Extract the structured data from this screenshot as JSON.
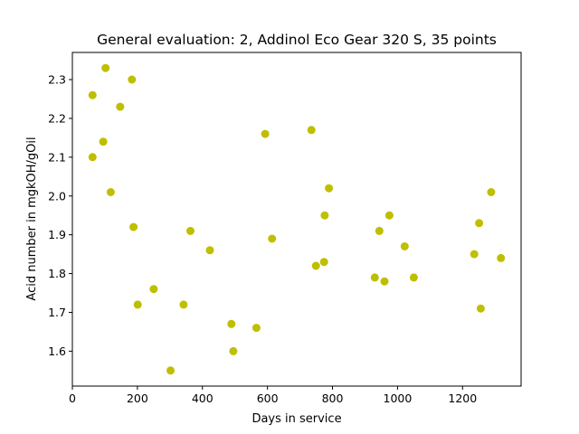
{
  "chart_data": {
    "type": "scatter",
    "title": "General evaluation: 2, Addinol Eco Gear 320 S, 35 points",
    "xlabel": "Days in service",
    "ylabel": "Acid number in mgkOH/gOil",
    "xlim": [
      0,
      1380
    ],
    "ylim": [
      1.51,
      2.37
    ],
    "xticks": [
      0,
      200,
      400,
      600,
      800,
      1000,
      1200
    ],
    "yticks": [
      1.6,
      1.7,
      1.8,
      1.9,
      2.0,
      2.1,
      2.2,
      2.3
    ],
    "ytick_labels": [
      "1.6",
      "1.7",
      "1.8",
      "1.9",
      "2.0",
      "2.1",
      "2.2",
      "2.3"
    ],
    "grid": false,
    "marker_color": "#bfbf00",
    "points": [
      {
        "x": 62,
        "y": 2.26
      },
      {
        "x": 62,
        "y": 2.1
      },
      {
        "x": 95,
        "y": 2.14
      },
      {
        "x": 102,
        "y": 2.33
      },
      {
        "x": 118,
        "y": 2.01
      },
      {
        "x": 147,
        "y": 2.23
      },
      {
        "x": 183,
        "y": 2.3
      },
      {
        "x": 188,
        "y": 1.92
      },
      {
        "x": 201,
        "y": 1.72
      },
      {
        "x": 250,
        "y": 1.76
      },
      {
        "x": 302,
        "y": 1.55
      },
      {
        "x": 342,
        "y": 1.72
      },
      {
        "x": 363,
        "y": 1.91
      },
      {
        "x": 423,
        "y": 1.86
      },
      {
        "x": 489,
        "y": 1.67
      },
      {
        "x": 495,
        "y": 1.6
      },
      {
        "x": 566,
        "y": 1.66
      },
      {
        "x": 593,
        "y": 2.16
      },
      {
        "x": 614,
        "y": 1.89
      },
      {
        "x": 735,
        "y": 2.17
      },
      {
        "x": 749,
        "y": 1.82
      },
      {
        "x": 774,
        "y": 1.83
      },
      {
        "x": 776,
        "y": 1.95
      },
      {
        "x": 789,
        "y": 2.02
      },
      {
        "x": 930,
        "y": 1.79
      },
      {
        "x": 944,
        "y": 1.91
      },
      {
        "x": 960,
        "y": 1.78
      },
      {
        "x": 975,
        "y": 1.95
      },
      {
        "x": 1022,
        "y": 1.87
      },
      {
        "x": 1050,
        "y": 1.79
      },
      {
        "x": 1236,
        "y": 1.85
      },
      {
        "x": 1251,
        "y": 1.93
      },
      {
        "x": 1256,
        "y": 1.71
      },
      {
        "x": 1288,
        "y": 2.01
      },
      {
        "x": 1318,
        "y": 1.84
      }
    ]
  }
}
